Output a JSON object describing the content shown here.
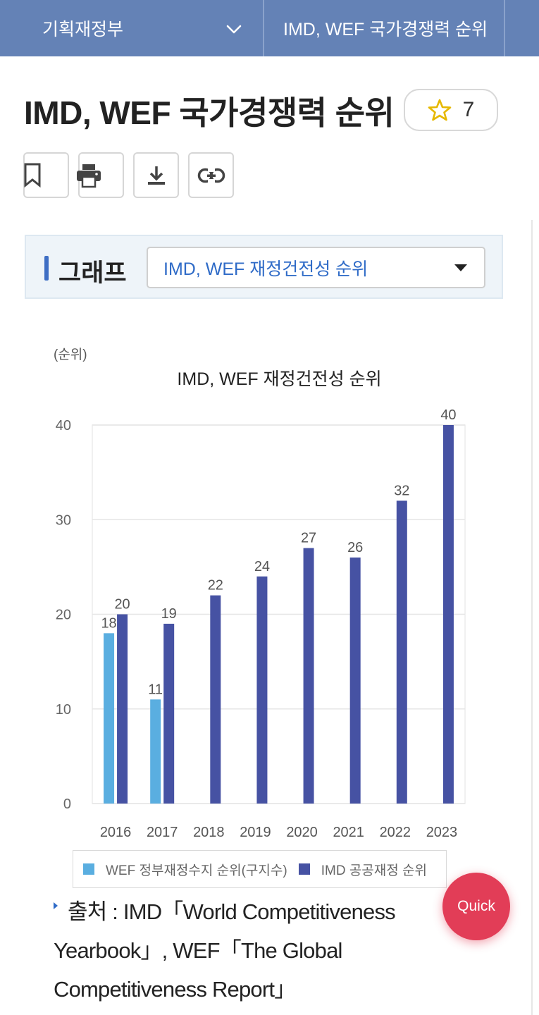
{
  "topbar": {
    "ministry": "기획재정부",
    "current": "IMD, WEF 국가경쟁력 순위"
  },
  "page": {
    "title": "IMD, WEF 국가경쟁력 순위",
    "favorite_count": "7"
  },
  "actions": {
    "icons": [
      "bookmark-icon",
      "print-icon",
      "download-icon",
      "link-icon"
    ]
  },
  "graph_selector": {
    "label": "그래프",
    "selected": "IMD, WEF 재정건전성 순위"
  },
  "chart_data": {
    "type": "bar",
    "title": "IMD, WEF 재정건전성 순위",
    "ylabel": "(순위)",
    "xlabel": "",
    "categories": [
      "2016",
      "2017",
      "2018",
      "2019",
      "2020",
      "2021",
      "2022",
      "2023"
    ],
    "series": [
      {
        "name": "WEF 정부재정수지 순위(구지수)",
        "color": "#5aaee0",
        "values": [
          18,
          11,
          null,
          null,
          null,
          null,
          null,
          null
        ]
      },
      {
        "name": "IMD 공공재정 순위",
        "color": "#4652a3",
        "values": [
          20,
          19,
          22,
          24,
          27,
          26,
          32,
          40
        ]
      }
    ],
    "ylim": [
      0,
      40
    ],
    "yticks": [
      0,
      10,
      20,
      30,
      40
    ],
    "grid": true,
    "legend": "bottom"
  },
  "source": {
    "text": "출처 : IMD「World Competitiveness Yearbook」, WEF「The Global Competitiveness Report」"
  },
  "quick_button": {
    "label": "Quick"
  }
}
